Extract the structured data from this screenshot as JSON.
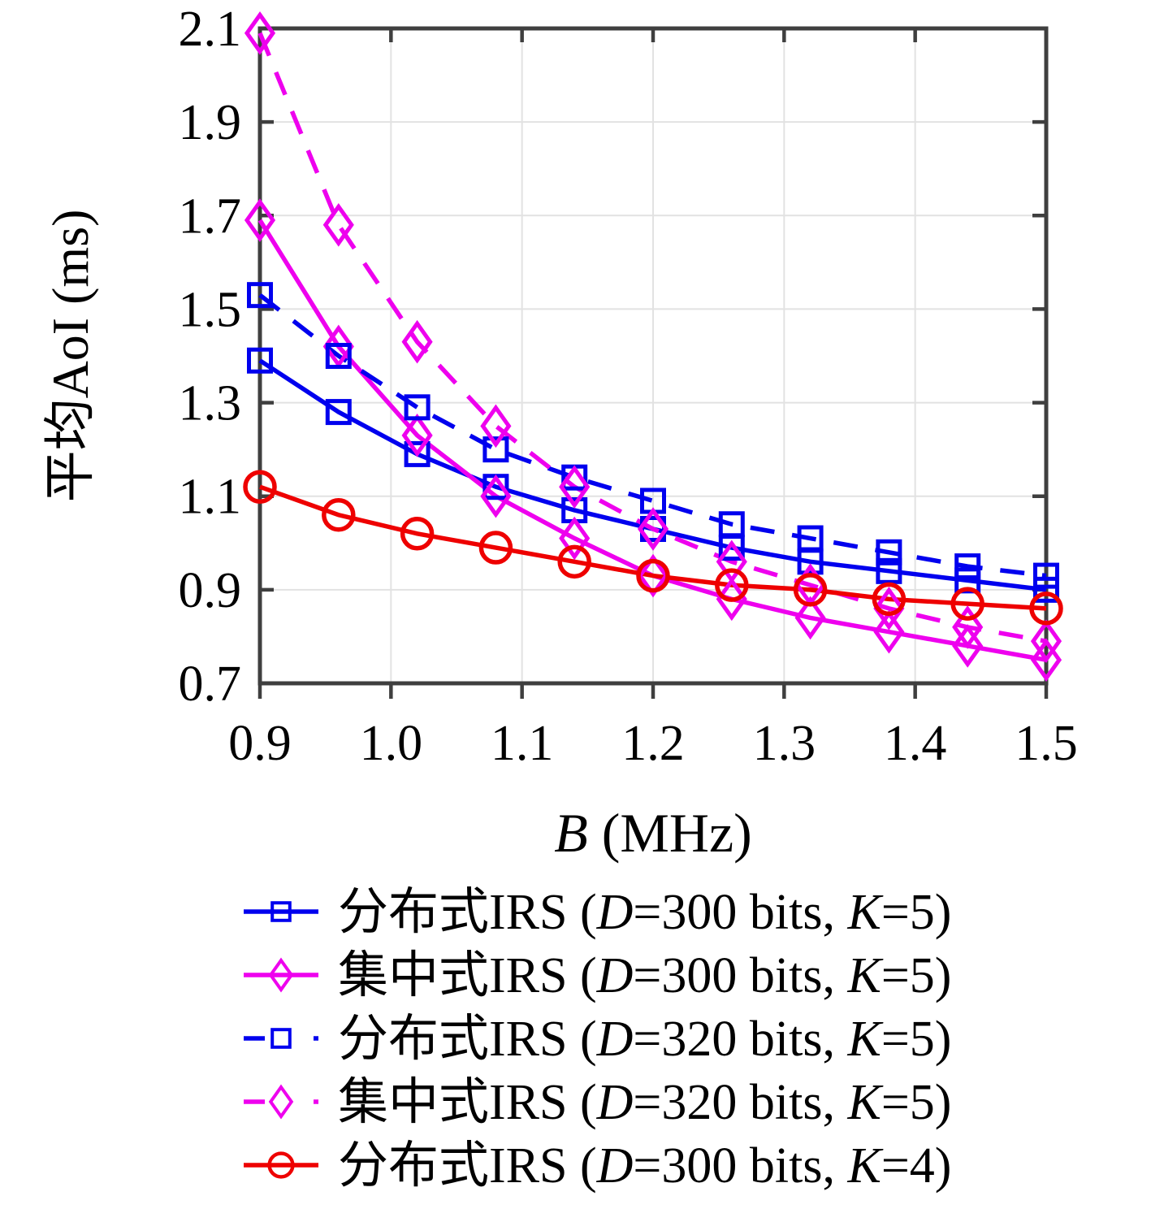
{
  "figure": {
    "background": "#FFFFFF",
    "frame_color": "#3F3F3F",
    "grid_color": "#E2E2E2",
    "tick_color": "#3F3F3F"
  },
  "chart_data": {
    "type": "line",
    "title": "",
    "xlabel": "B (MHz)",
    "ylabel": "平均AoI (ms)",
    "xlabel_segments": [
      {
        "t": "B",
        "i": true
      },
      {
        "t": " (MHz)",
        "i": false
      }
    ],
    "ylabel_segments": [
      {
        "t": "平均AoI (ms)",
        "i": false
      }
    ],
    "xlim": [
      0.9,
      1.5
    ],
    "ylim": [
      0.7,
      2.1
    ],
    "grid": true,
    "legend_position": "below",
    "xticks": [
      {
        "v": 0.9,
        "label": "0.9"
      },
      {
        "v": 1.0,
        "label": "1.0"
      },
      {
        "v": 1.1,
        "label": "1.1"
      },
      {
        "v": 1.2,
        "label": "1.2"
      },
      {
        "v": 1.3,
        "label": "1.3"
      },
      {
        "v": 1.4,
        "label": "1.4"
      },
      {
        "v": 1.5,
        "label": "1.5"
      }
    ],
    "yticks": [
      {
        "v": 2.1,
        "label": "2.1"
      },
      {
        "v": 1.9,
        "label": "1.9"
      },
      {
        "v": 1.7,
        "label": "1.7"
      },
      {
        "v": 1.5,
        "label": "1.5"
      },
      {
        "v": 1.3,
        "label": "1.3"
      },
      {
        "v": 1.1,
        "label": "1.1"
      },
      {
        "v": 0.9,
        "label": "0.9"
      },
      {
        "v": 0.7,
        "label": "0.7"
      }
    ],
    "x": [
      0.9,
      0.96,
      1.02,
      1.08,
      1.14,
      1.2,
      1.26,
      1.32,
      1.38,
      1.44,
      1.5
    ],
    "series": [
      {
        "name": "分布式IRS (D=300 bits, K=5)",
        "label_segments": [
          {
            "t": "分布式IRS (",
            "i": false
          },
          {
            "t": "D",
            "i": true
          },
          {
            "t": "=300 bits, ",
            "i": false
          },
          {
            "t": "K",
            "i": true
          },
          {
            "t": "=5)",
            "i": false
          }
        ],
        "color": "#0000EE",
        "style": "solid",
        "marker": "square",
        "values": [
          1.39,
          1.28,
          1.19,
          1.12,
          1.07,
          1.03,
          0.99,
          0.96,
          0.94,
          0.92,
          0.9
        ]
      },
      {
        "name": "集中式IRS (D=300 bits, K=5)",
        "label_segments": [
          {
            "t": "集中式IRS (",
            "i": false
          },
          {
            "t": "D",
            "i": true
          },
          {
            "t": "=300 bits, ",
            "i": false
          },
          {
            "t": "K",
            "i": true
          },
          {
            "t": "=5)",
            "i": false
          }
        ],
        "color": "#EE00EE",
        "style": "solid",
        "marker": "diamond",
        "values": [
          1.69,
          1.42,
          1.23,
          1.1,
          1.01,
          0.93,
          0.88,
          0.84,
          0.81,
          0.78,
          0.75
        ]
      },
      {
        "name": "分布式IRS (D=320 bits, K=5)",
        "label_segments": [
          {
            "t": "分布式IRS (",
            "i": false
          },
          {
            "t": "D",
            "i": true
          },
          {
            "t": "=320 bits, ",
            "i": false
          },
          {
            "t": "K",
            "i": true
          },
          {
            "t": "=5)",
            "i": false
          }
        ],
        "color": "#0000EE",
        "style": "dashed",
        "marker": "square",
        "values": [
          1.53,
          1.4,
          1.29,
          1.2,
          1.14,
          1.09,
          1.04,
          1.01,
          0.98,
          0.95,
          0.93
        ]
      },
      {
        "name": "集中式IRS (D=320 bits, K=5)",
        "label_segments": [
          {
            "t": "集中式IRS (",
            "i": false
          },
          {
            "t": "D",
            "i": true
          },
          {
            "t": "=320 bits, ",
            "i": false
          },
          {
            "t": "K",
            "i": true
          },
          {
            "t": "=5)",
            "i": false
          }
        ],
        "color": "#EE00EE",
        "style": "dashed",
        "marker": "diamond",
        "values": [
          2.09,
          1.68,
          1.43,
          1.25,
          1.12,
          1.03,
          0.96,
          0.91,
          0.86,
          0.82,
          0.79
        ]
      },
      {
        "name": "分布式IRS (D=300 bits, K=4)",
        "label_segments": [
          {
            "t": "分布式IRS (",
            "i": false
          },
          {
            "t": "D",
            "i": true
          },
          {
            "t": "=300 bits, ",
            "i": false
          },
          {
            "t": "K",
            "i": true
          },
          {
            "t": "=4)",
            "i": false
          }
        ],
        "color": "#EE0000",
        "style": "solid",
        "marker": "circle",
        "values": [
          1.12,
          1.06,
          1.02,
          0.99,
          0.96,
          0.93,
          0.91,
          0.9,
          0.88,
          0.87,
          0.86
        ]
      }
    ]
  }
}
